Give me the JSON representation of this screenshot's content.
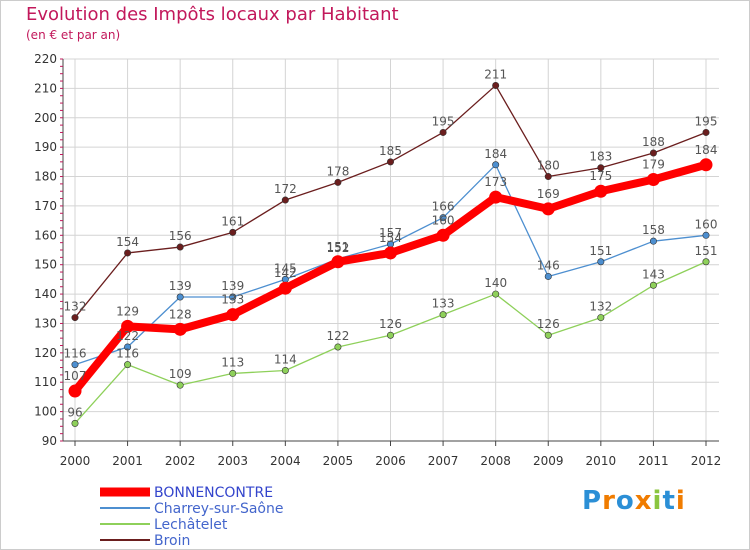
{
  "chart_data": {
    "type": "line",
    "title": "Evolution des Impôts locaux par Habitant",
    "subtitle": "(en € et par an)",
    "xlabel": "",
    "ylabel": "",
    "ylim": [
      90,
      220
    ],
    "yticks": [
      "90",
      "100",
      "110",
      "120",
      "130",
      "140",
      "150",
      "160",
      "170",
      "180",
      "190",
      "200",
      "210",
      "220"
    ],
    "categories": [
      "2000",
      "2001",
      "2002",
      "2003",
      "2004",
      "2005",
      "2006",
      "2007",
      "2008",
      "2009",
      "2010",
      "2011",
      "2012"
    ],
    "grid": true,
    "legend_position": "bottom-left",
    "series": [
      {
        "name": "BONNENCONTRE",
        "color": "#ff0000",
        "values": [
          107,
          129,
          128,
          133,
          142,
          151,
          154,
          160,
          173,
          169,
          175,
          179,
          184
        ]
      },
      {
        "name": "Charrey-sur-Saône",
        "color": "#4d8fd0",
        "values": [
          116,
          122,
          139,
          139,
          145,
          152,
          157,
          166,
          184,
          146,
          151,
          158,
          160
        ]
      },
      {
        "name": "Lechâtelet",
        "color": "#8ed05a",
        "values": [
          96,
          116,
          109,
          113,
          114,
          122,
          126,
          133,
          140,
          126,
          132,
          143,
          151
        ]
      },
      {
        "name": "Broin",
        "color": "#6b1e1e",
        "values": [
          132,
          154,
          156,
          161,
          172,
          178,
          185,
          195,
          211,
          180,
          183,
          188,
          195
        ]
      }
    ]
  },
  "brand": {
    "logo_letters": [
      "P",
      "r",
      "o",
      "x",
      "i",
      "t",
      "i"
    ],
    "logo_colors": [
      "#2b8fd6",
      "#f07c00",
      "#2b8fd6",
      "#f07c00",
      "#8bc53f",
      "#2b8fd6",
      "#f07c00"
    ]
  }
}
